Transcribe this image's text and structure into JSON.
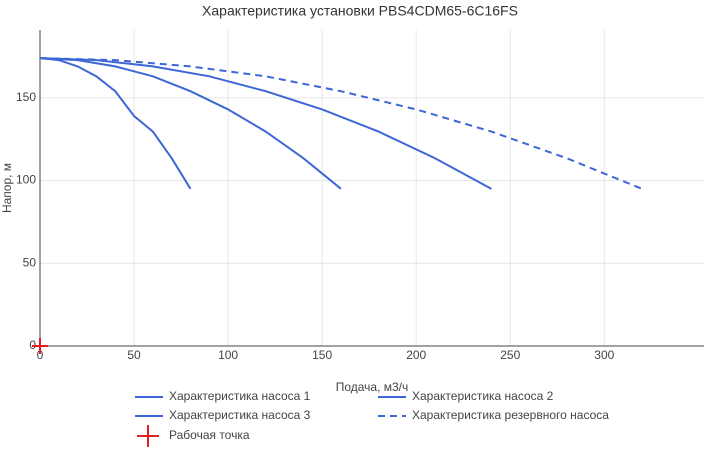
{
  "chart_data": {
    "type": "line",
    "title": "Характеристика установки PBS4CDM65-6C16FS",
    "x_label": "Подача, м3/ч",
    "y_label": "Напор, м",
    "xlim": [
      0,
      353
    ],
    "ylim": [
      0,
      191
    ],
    "xticks": [
      0,
      50,
      100,
      150,
      200,
      250,
      300
    ],
    "yticks": [
      0,
      50,
      100,
      150
    ],
    "grid": true,
    "series": [
      {
        "name": "Характеристика насоса 1",
        "color": "#3d67d6",
        "dash": false,
        "x": [
          0,
          10,
          20,
          30,
          40,
          50,
          60,
          70,
          80
        ],
        "values": [
          174,
          172.8,
          169,
          163,
          154,
          139,
          129.6,
          113.5,
          95
        ]
      },
      {
        "name": "Характеристика насоса 2",
        "color": "#3d67d6",
        "dash": false,
        "x": [
          0,
          20,
          40,
          60,
          80,
          100,
          120,
          140,
          160
        ],
        "values": [
          174,
          172.8,
          169,
          163,
          154,
          143,
          129.6,
          113.5,
          95
        ]
      },
      {
        "name": "Характеристика насоса 3",
        "color": "#3d67d6",
        "dash": false,
        "x": [
          0,
          30,
          60,
          90,
          120,
          150,
          180,
          210,
          240
        ],
        "values": [
          174,
          172.8,
          169,
          163,
          154,
          143,
          129.6,
          113.5,
          95
        ]
      },
      {
        "name": "Характеристика резервного насоса",
        "color": "#3d67d6",
        "dash": true,
        "x": [
          0,
          40,
          80,
          120,
          160,
          200,
          240,
          280,
          320
        ],
        "values": [
          174,
          172.8,
          169,
          163,
          154,
          143,
          129.6,
          113.5,
          95
        ]
      },
      {
        "name": "Рабочая точка",
        "color": "#e02020",
        "marker": "cross",
        "x": [
          0
        ],
        "values": [
          0
        ]
      }
    ]
  }
}
